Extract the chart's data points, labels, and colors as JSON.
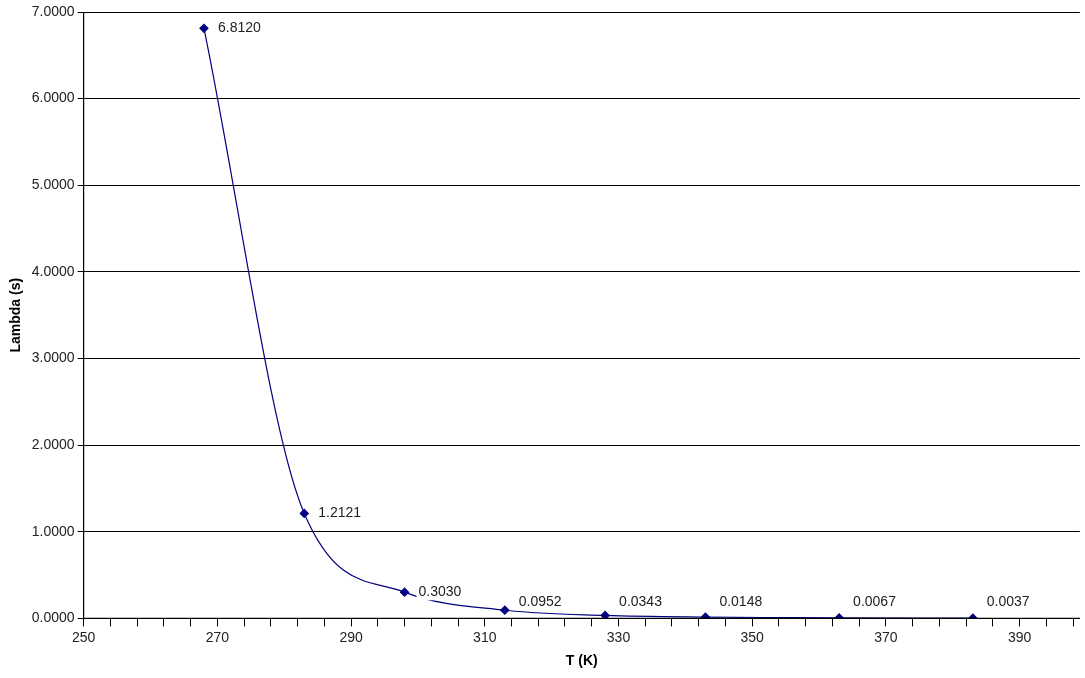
{
  "chart_data": {
    "type": "line",
    "xlabel": "T (K)",
    "ylabel": "Lambda (s)",
    "x": [
      268,
      283,
      298,
      313,
      328,
      343,
      363,
      383
    ],
    "series": [
      {
        "color": "#000080",
        "values": [
          6.812,
          1.2121,
          0.303,
          0.0952,
          0.0343,
          0.0148,
          0.0067,
          0.0037
        ],
        "value_labels": [
          "6.8120",
          "1.2121",
          "0.3030",
          "0.0952",
          "0.0343",
          "0.0148",
          "0.0067",
          "0.0037"
        ]
      }
    ],
    "xlim": [
      250,
      399
    ],
    "xticks": [
      250,
      {
        "value": 254,
        "label": null
      },
      {
        "value": 258,
        "label": null
      },
      {
        "value": 262,
        "label": null
      },
      {
        "value": 266,
        "label": null
      },
      270,
      {
        "value": 274,
        "label": null
      },
      {
        "value": 278,
        "label": null
      },
      {
        "value": 282,
        "label": null
      },
      {
        "value": 286,
        "label": null
      },
      290,
      {
        "value": 294,
        "label": null
      },
      {
        "value": 298,
        "label": null
      },
      {
        "value": 302,
        "label": null
      },
      {
        "value": 306,
        "label": null
      },
      310,
      {
        "value": 314,
        "label": null
      },
      {
        "value": 318,
        "label": null
      },
      {
        "value": 322,
        "label": null
      },
      {
        "value": 326,
        "label": null
      },
      330,
      {
        "value": 334,
        "label": null
      },
      {
        "value": 338,
        "label": null
      },
      {
        "value": 342,
        "label": null
      },
      {
        "value": 346,
        "label": null
      },
      350,
      {
        "value": 354,
        "label": null
      },
      {
        "value": 358,
        "label": null
      },
      {
        "value": 362,
        "label": null
      },
      {
        "value": 366,
        "label": null
      },
      370,
      {
        "value": 374,
        "label": null
      },
      {
        "value": 378,
        "label": null
      },
      {
        "value": 382,
        "label": null
      },
      {
        "value": 386,
        "label": null
      },
      390,
      {
        "value": 394,
        "label": null
      },
      {
        "value": 398,
        "label": null
      }
    ],
    "ylim": [
      0,
      7
    ],
    "yticks": [
      {
        "value": 0,
        "label": "0.0000"
      },
      {
        "value": 1,
        "label": "1.0000"
      },
      {
        "value": 2,
        "label": "2.0000"
      },
      {
        "value": 3,
        "label": "3.0000"
      },
      {
        "value": 4,
        "label": "4.0000"
      },
      {
        "value": 5,
        "label": "5.0000"
      },
      {
        "value": 6,
        "label": "6.0000"
      },
      {
        "value": 7,
        "label": "7.0000"
      }
    ],
    "grid": "y",
    "legend": false,
    "marker": "diamond",
    "line_style": "solid"
  }
}
